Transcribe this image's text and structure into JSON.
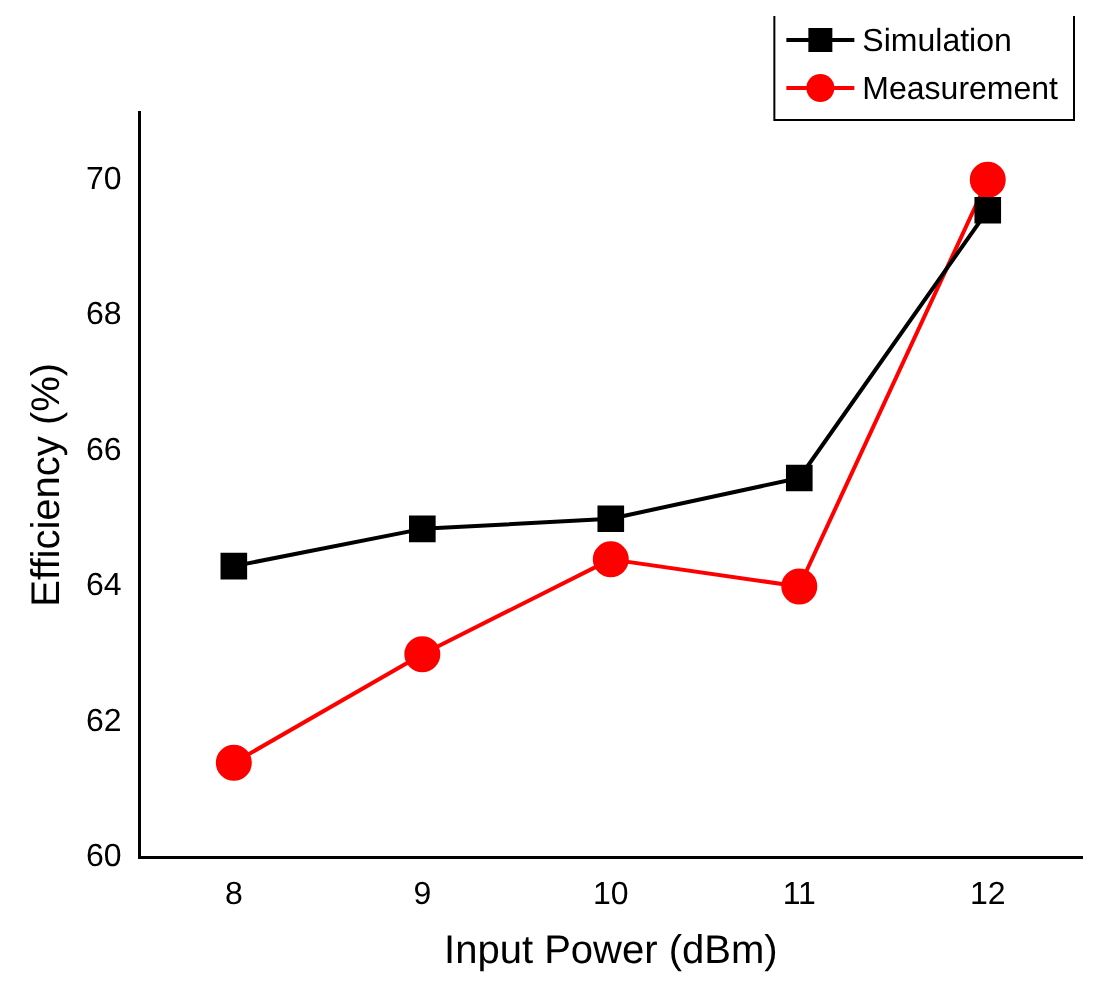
{
  "chart_data": {
    "type": "line",
    "xlabel": "Input Power (dBm)",
    "ylabel": "Efficiency (%)",
    "x": [
      8,
      9,
      10,
      11,
      12
    ],
    "series": [
      {
        "name": "Simulation",
        "color": "#000000",
        "marker": "square",
        "values": [
          64.3,
          64.85,
          65.0,
          65.6,
          69.55
        ]
      },
      {
        "name": "Measurement",
        "color": "#ff0000",
        "marker": "circle",
        "values": [
          61.4,
          63.0,
          64.4,
          64.0,
          70.0
        ]
      }
    ],
    "xlim": [
      7.5,
      12.5
    ],
    "xticks": [
      8,
      9,
      10,
      11,
      12
    ],
    "ylim": [
      60,
      71
    ],
    "yticks": [
      60,
      62,
      64,
      66,
      68,
      70
    ],
    "grid": false,
    "legend": "top right",
    "line_style": "solid"
  }
}
